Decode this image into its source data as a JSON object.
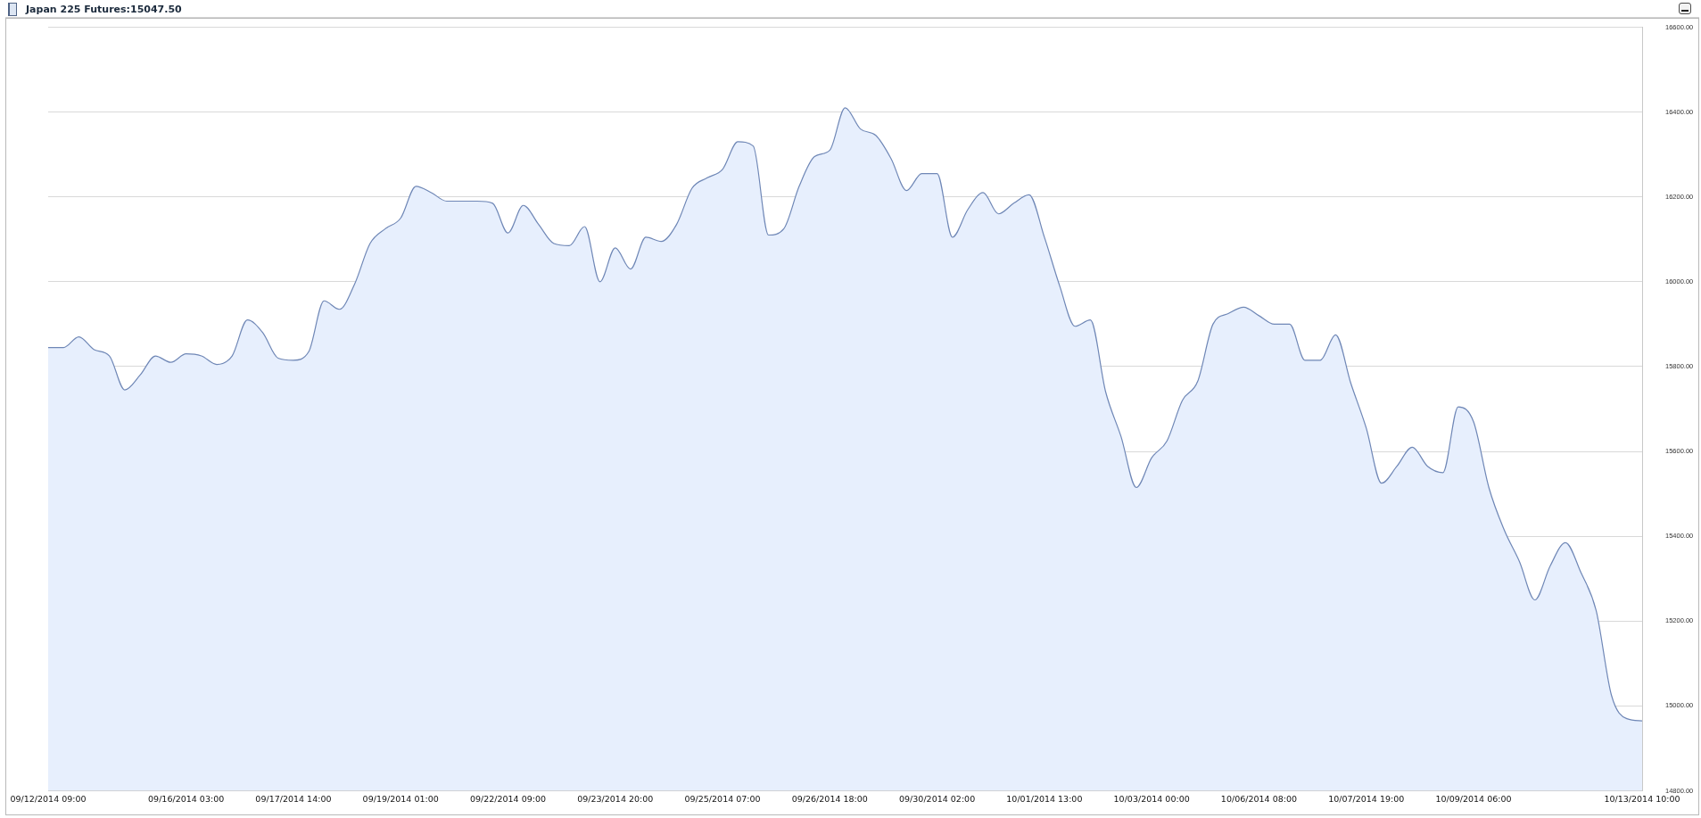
{
  "chart_data": {
    "type": "area",
    "title": "Japan 225 Futures:15047.50",
    "categories": [
      "09/12/2014 09:00",
      null,
      null,
      null,
      null,
      null,
      null,
      null,
      null,
      "09/16/2014 03:00",
      null,
      null,
      null,
      null,
      null,
      null,
      "09/17/2014 14:00",
      null,
      null,
      null,
      null,
      null,
      null,
      "09/19/2014 01:00",
      null,
      null,
      null,
      null,
      null,
      null,
      "09/22/2014 09:00",
      null,
      null,
      null,
      null,
      null,
      null,
      "09/23/2014 20:00",
      null,
      null,
      null,
      null,
      null,
      null,
      "09/25/2014 07:00",
      null,
      null,
      null,
      null,
      null,
      null,
      "09/26/2014 18:00",
      null,
      null,
      null,
      null,
      null,
      null,
      "09/30/2014 02:00",
      null,
      null,
      null,
      null,
      null,
      null,
      "10/01/2014 13:00",
      null,
      null,
      null,
      null,
      null,
      null,
      "10/03/2014 00:00",
      null,
      null,
      null,
      null,
      null,
      null,
      "10/06/2014 08:00",
      null,
      null,
      null,
      null,
      null,
      null,
      "10/07/2014 19:00",
      null,
      null,
      null,
      null,
      null,
      null,
      "10/09/2014 06:00",
      null,
      null,
      null,
      null,
      null,
      null,
      null,
      null,
      null,
      null,
      "10/13/2014 10:00"
    ],
    "values": [
      15845,
      15845,
      15870,
      15840,
      15825,
      15745,
      15780,
      15825,
      15810,
      15830,
      15825,
      15805,
      15825,
      15910,
      15880,
      15820,
      15815,
      15835,
      15955,
      15935,
      15995,
      16090,
      16125,
      16150,
      16225,
      16210,
      16190,
      16190,
      16190,
      16185,
      16115,
      16180,
      16135,
      16090,
      16085,
      16130,
      16000,
      16080,
      16030,
      16105,
      16095,
      16135,
      16220,
      16245,
      16265,
      16330,
      16320,
      16110,
      16125,
      16225,
      16295,
      16310,
      16410,
      16360,
      16345,
      16290,
      16215,
      16255,
      16255,
      16105,
      16170,
      16210,
      16160,
      16185,
      16205,
      16105,
      15990,
      15895,
      15910,
      15740,
      15635,
      15515,
      15585,
      15625,
      15720,
      15765,
      15900,
      15925,
      15940,
      15920,
      15900,
      15900,
      15815,
      15815,
      15875,
      15760,
      15655,
      15525,
      15565,
      15610,
      15565,
      15550,
      15705,
      15670,
      15515,
      15415,
      15340,
      15250,
      15330,
      15385,
      15315,
      15225,
      15025,
      14970,
      14965
    ],
    "color": "#6f87b6",
    "ylim": [
      14800,
      16600
    ],
    "yticks": [
      {
        "value": 14800,
        "label": "14800.00"
      },
      {
        "value": 15000,
        "label": "15000.00"
      },
      {
        "value": 15200,
        "label": "15200.00"
      },
      {
        "value": 15400,
        "label": "15400.00"
      },
      {
        "value": 15600,
        "label": "15600.00"
      },
      {
        "value": 15800,
        "label": "15800.00"
      },
      {
        "value": 16000,
        "label": "16000.00"
      },
      {
        "value": 16200,
        "label": "16200.00"
      },
      {
        "value": 16400,
        "label": "16400.00"
      },
      {
        "value": 16600,
        "label": "16600.00"
      }
    ],
    "grid": "y",
    "legend": false,
    "marker": "none"
  }
}
